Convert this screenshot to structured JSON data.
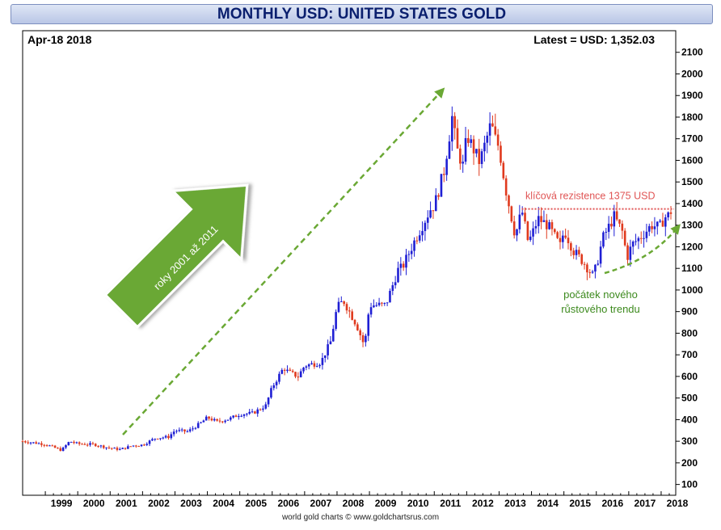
{
  "chart_data": {
    "type": "candlestick",
    "title": "MONTHLY USD: UNITED STATES GOLD",
    "date_label": "Apr-18  2018",
    "latest_label": "Latest = USD: 1,352.03",
    "footer": "world gold charts © www.goldchartsrus.com",
    "ylim": [
      50,
      2200
    ],
    "y_ticks": [
      100,
      200,
      300,
      400,
      500,
      600,
      700,
      800,
      900,
      1000,
      1100,
      1200,
      1300,
      1400,
      1500,
      1600,
      1700,
      1800,
      1900,
      2000,
      2100
    ],
    "x_ticks": [
      "1999",
      "2000",
      "2001",
      "2002",
      "2003",
      "2004",
      "2005",
      "2006",
      "2007",
      "2008",
      "2009",
      "2010",
      "2011",
      "2012",
      "2013",
      "2014",
      "2015",
      "2016",
      "2017",
      "2018"
    ],
    "xlim": [
      1998.3,
      2018.45
    ],
    "grid": false,
    "up_color": "#1f1fd4",
    "down_color": "#e03a1e",
    "resistance": {
      "value": 1375,
      "label": "klíčová rezistence 1375 USD",
      "x_start": 2013.7,
      "color": "#e05555"
    },
    "annotations": {
      "big_arrow_label": "roky 2001 až 2011",
      "new_trend_label_line1": "počátek nového",
      "new_trend_label_line2": "růstového trendu",
      "arrow_color": "#6aa834"
    },
    "price_path": [
      [
        1998.3,
        300
      ],
      [
        1999.0,
        286
      ],
      [
        1999.5,
        258
      ],
      [
        1999.75,
        300
      ],
      [
        2000.0,
        288
      ],
      [
        2000.5,
        285
      ],
      [
        2001.0,
        268
      ],
      [
        2001.3,
        262
      ],
      [
        2001.7,
        280
      ],
      [
        2002.0,
        283
      ],
      [
        2002.4,
        315
      ],
      [
        2002.8,
        320
      ],
      [
        2003.0,
        350
      ],
      [
        2003.4,
        345
      ],
      [
        2003.8,
        385
      ],
      [
        2004.0,
        410
      ],
      [
        2004.3,
        390
      ],
      [
        2004.7,
        405
      ],
      [
        2005.0,
        425
      ],
      [
        2005.4,
        430
      ],
      [
        2005.8,
        465
      ],
      [
        2006.0,
        550
      ],
      [
        2006.35,
        640
      ],
      [
        2006.5,
        620
      ],
      [
        2006.8,
        600
      ],
      [
        2007.0,
        650
      ],
      [
        2007.5,
        665
      ],
      [
        2007.8,
        760
      ],
      [
        2008.0,
        920
      ],
      [
        2008.2,
        950
      ],
      [
        2008.6,
        840
      ],
      [
        2008.85,
        740
      ],
      [
        2009.0,
        930
      ],
      [
        2009.5,
        930
      ],
      [
        2009.9,
        1100
      ],
      [
        2010.0,
        1100
      ],
      [
        2010.4,
        1230
      ],
      [
        2010.9,
        1380
      ],
      [
        2011.0,
        1390
      ],
      [
        2011.3,
        1550
      ],
      [
        2011.55,
        1800
      ],
      [
        2011.7,
        1650
      ],
      [
        2011.9,
        1570
      ],
      [
        2012.0,
        1720
      ],
      [
        2012.4,
        1590
      ],
      [
        2012.75,
        1770
      ],
      [
        2012.9,
        1690
      ],
      [
        2013.0,
        1660
      ],
      [
        2013.2,
        1470
      ],
      [
        2013.5,
        1250
      ],
      [
        2013.7,
        1370
      ],
      [
        2013.9,
        1220
      ],
      [
        2014.0,
        1250
      ],
      [
        2014.2,
        1330
      ],
      [
        2014.5,
        1300
      ],
      [
        2014.9,
        1200
      ],
      [
        2015.0,
        1280
      ],
      [
        2015.3,
        1180
      ],
      [
        2015.6,
        1130
      ],
      [
        2015.9,
        1065
      ],
      [
        2016.0,
        1110
      ],
      [
        2016.2,
        1240
      ],
      [
        2016.55,
        1340
      ],
      [
        2016.8,
        1270
      ],
      [
        2016.95,
        1150
      ],
      [
        2017.1,
        1210
      ],
      [
        2017.4,
        1250
      ],
      [
        2017.7,
        1300
      ],
      [
        2017.95,
        1290
      ],
      [
        2018.1,
        1335
      ],
      [
        2018.3,
        1352
      ]
    ]
  }
}
